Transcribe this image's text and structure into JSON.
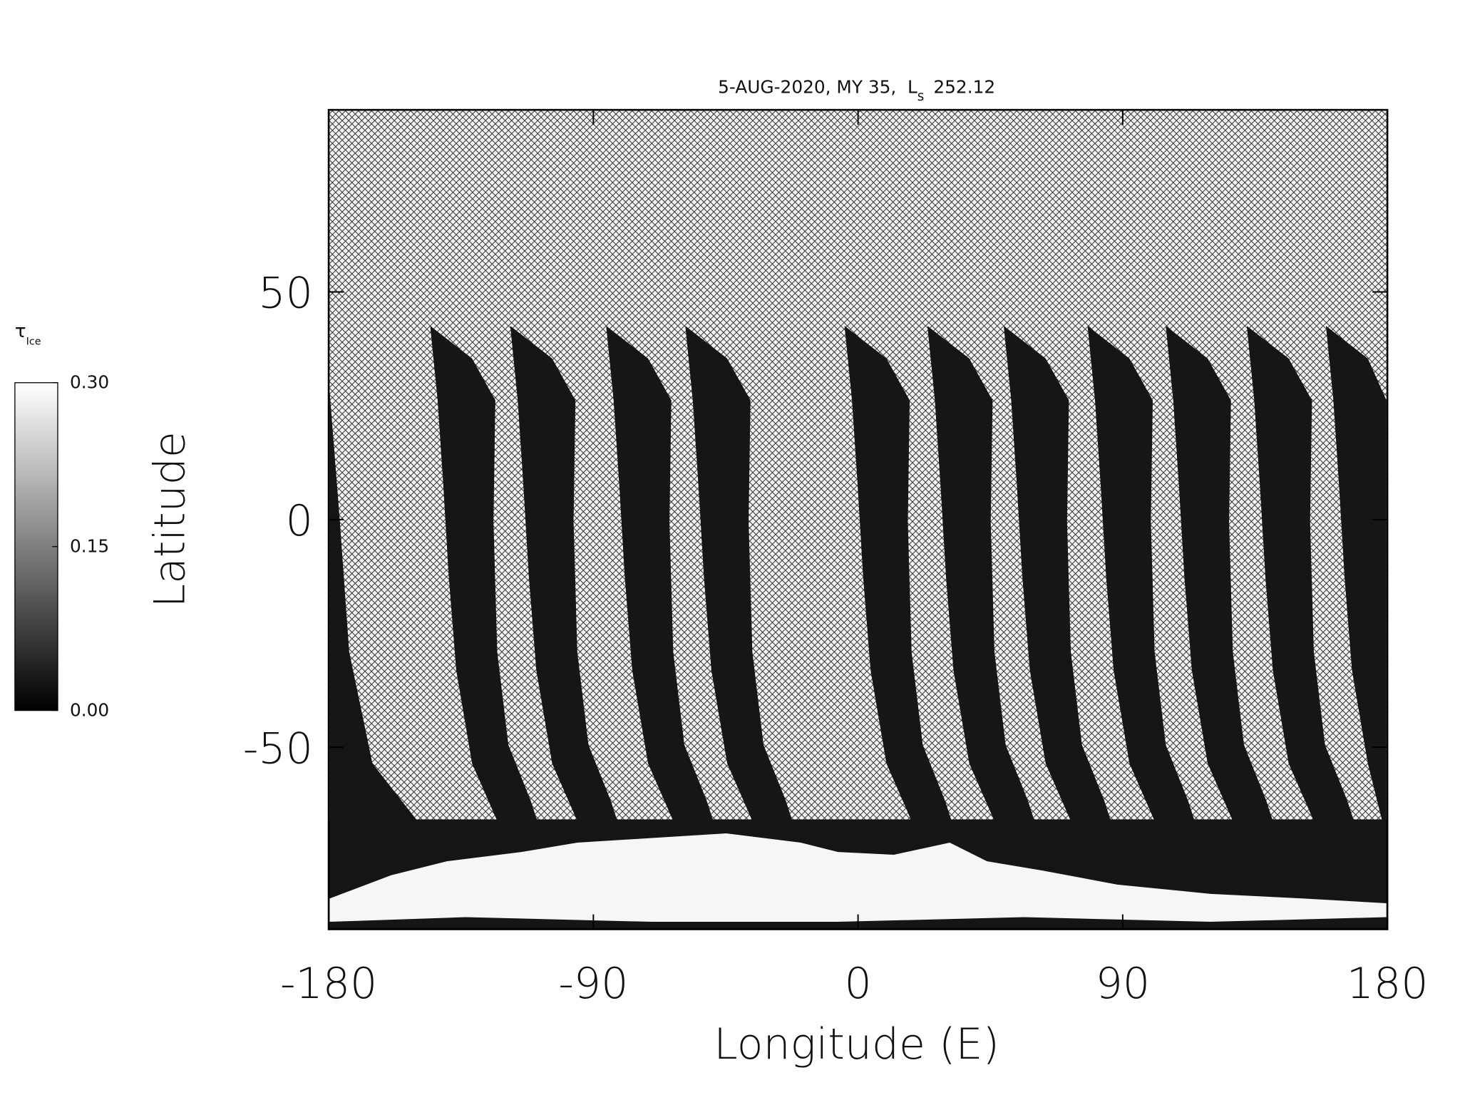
{
  "chart_data": {
    "type": "map",
    "title": {
      "text": "5-AUG-2020, MY 35,",
      "symbol": "L",
      "subscript": "s",
      "value": "252.12"
    },
    "x_label": "Longitude (E)",
    "y_label": "Latitude",
    "xlim": [
      -180,
      180
    ],
    "xticks": [
      -180,
      -90,
      0,
      90,
      180
    ],
    "ylim": [
      -90,
      90
    ],
    "yticks": [
      -50,
      0,
      50
    ],
    "colorbar": {
      "symbol": "τ",
      "subscript": "Ice",
      "lim": [
        0,
        0.3
      ],
      "ticks": [
        {
          "value": 0,
          "label": "0.00"
        },
        {
          "value": 0.15,
          "label": "0.15"
        },
        {
          "value": 0.3,
          "label": "0.30"
        }
      ],
      "colors": [
        "#000000",
        "#ffffff"
      ]
    }
  }
}
